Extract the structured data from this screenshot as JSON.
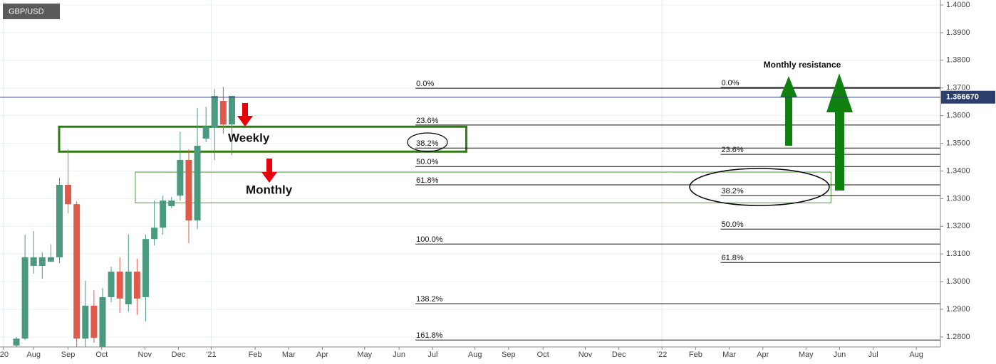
{
  "chart_data": {
    "type": "candlestick",
    "title": "GBP/USD",
    "x": [
      0,
      1,
      2,
      3,
      4,
      5,
      6,
      7,
      8,
      9,
      10,
      11,
      12,
      13,
      14,
      15,
      16,
      17,
      18,
      19,
      20,
      21,
      22,
      23,
      24,
      25
    ],
    "open": [
      1.2769,
      1.2794,
      1.3057,
      1.3057,
      1.3072,
      1.3088,
      1.335,
      1.328,
      1.2794,
      1.2913,
      1.2764,
      1.2944,
      1.3036,
      1.2918,
      1.3036,
      1.2944,
      1.3154,
      1.3195,
      1.3273,
      1.3311,
      1.344,
      1.3221,
      1.3517,
      1.3556,
      1.3653,
      1.3568
    ],
    "high": [
      1.28,
      1.317,
      1.3183,
      1.3106,
      1.3135,
      1.3375,
      1.3478,
      1.329,
      1.3003,
      1.2969,
      1.2977,
      1.3054,
      1.3088,
      1.317,
      1.3083,
      1.317,
      1.3293,
      1.3311,
      1.3306,
      1.3542,
      1.3478,
      1.3627,
      1.3632,
      1.3697,
      1.3704,
      1.3671
    ],
    "low": [
      1.2764,
      1.2789,
      1.3029,
      1.301,
      1.3072,
      1.3067,
      1.3247,
      1.2764,
      1.2764,
      1.2779,
      1.2764,
      1.2926,
      1.2887,
      1.2892,
      1.288,
      1.2856,
      1.3131,
      1.317,
      1.3265,
      1.3293,
      1.3139,
      1.319,
      1.3504,
      1.344,
      1.3535,
      1.3457
    ],
    "close": [
      1.2794,
      1.3088,
      1.3088,
      1.3088,
      1.3088,
      1.335,
      1.328,
      1.2794,
      1.2913,
      1.2797,
      1.2944,
      1.3036,
      1.2939,
      1.3036,
      1.2939,
      1.3154,
      1.3195,
      1.3293,
      1.3293,
      1.344,
      1.3221,
      1.3491,
      1.3561,
      1.3671,
      1.3568,
      1.3671
    ],
    "up_color": "#4a9a80",
    "down_color": "#e05a4b",
    "xlim": [
      -1.9,
      107.2
    ],
    "xticks": [
      {
        "value": -1.5,
        "label": "'20"
      },
      {
        "value": 2.0,
        "label": "Aug"
      },
      {
        "value": 6.0,
        "label": "Sep"
      },
      {
        "value": 9.9,
        "label": "Oct"
      },
      {
        "value": 14.9,
        "label": "Nov"
      },
      {
        "value": 18.8,
        "label": "Dec"
      },
      {
        "value": 22.6,
        "label": "'21"
      },
      {
        "value": 27.7,
        "label": "Feb"
      },
      {
        "value": 31.6,
        "label": "Mar"
      },
      {
        "value": 35.5,
        "label": "Apr"
      },
      {
        "value": 40.4,
        "label": "May"
      },
      {
        "value": 44.4,
        "label": "Jun"
      },
      {
        "value": 48.3,
        "label": "Jul"
      },
      {
        "value": 53.2,
        "label": "Aug"
      },
      {
        "value": 57.1,
        "label": "Sep"
      },
      {
        "value": 61.1,
        "label": "Oct"
      },
      {
        "value": 66.0,
        "label": "Nov"
      },
      {
        "value": 69.9,
        "label": "Dec"
      },
      {
        "value": 74.9,
        "label": "'22"
      },
      {
        "value": 78.8,
        "label": "Feb"
      },
      {
        "value": 82.7,
        "label": "Mar"
      },
      {
        "value": 86.6,
        "label": "Apr"
      },
      {
        "value": 91.6,
        "label": "May"
      },
      {
        "value": 95.5,
        "label": "Jun"
      },
      {
        "value": 99.4,
        "label": "Jul"
      },
      {
        "value": 104.4,
        "label": "Aug"
      }
    ],
    "ylim": [
      1.2764,
      1.4018
    ],
    "yticks": [
      {
        "value": 1.28,
        "label": "1.2800"
      },
      {
        "value": 1.29,
        "label": "1.2900"
      },
      {
        "value": 1.3,
        "label": "1.3000"
      },
      {
        "value": 1.31,
        "label": "1.3100"
      },
      {
        "value": 1.32,
        "label": "1.3200"
      },
      {
        "value": 1.33,
        "label": "1.3300"
      },
      {
        "value": 1.34,
        "label": "1.3400"
      },
      {
        "value": 1.35,
        "label": "1.3500"
      },
      {
        "value": 1.36,
        "label": "1.3600"
      },
      {
        "value": 1.37,
        "label": "1.3700"
      },
      {
        "value": 1.38,
        "label": "1.3800"
      },
      {
        "value": 1.39,
        "label": "1.3900"
      },
      {
        "value": 1.4,
        "label": "1.4000"
      }
    ],
    "grid": true,
    "last_price": {
      "value": 1.36667,
      "label": "1.366670"
    },
    "fib_retracements": [
      {
        "start": 46.3,
        "levels": [
          {
            "label": "0.0%",
            "price": 1.3699
          },
          {
            "label": "23.6%",
            "price": 1.3566
          },
          {
            "label": "38.2%",
            "price": 1.3483
          },
          {
            "label": "50.0%",
            "price": 1.3416
          },
          {
            "label": "61.8%",
            "price": 1.335
          },
          {
            "label": "100.0%",
            "price": 1.3136
          },
          {
            "label": "138.2%",
            "price": 1.292
          },
          {
            "label": "161.8%",
            "price": 1.2789
          }
        ]
      },
      {
        "start": 81.7,
        "levels": [
          {
            "label": "0.0%",
            "price": 1.3702
          },
          {
            "label": "23.6%",
            "price": 1.346
          },
          {
            "label": "38.2%",
            "price": 1.3311
          },
          {
            "label": "50.0%",
            "price": 1.319
          },
          {
            "label": "61.8%",
            "price": 1.3069
          }
        ]
      }
    ],
    "zones": [
      {
        "label": "Weekly",
        "price_range": [
          1.347,
          1.356
        ],
        "x_range": [
          4.96,
          52.2
        ],
        "color": "#2e7d12"
      },
      {
        "label": "Monthly",
        "price_range": [
          1.3285,
          1.3396
        ],
        "x_range": [
          13.8,
          94.5
        ],
        "color": "#4a9a2a"
      }
    ],
    "annotation": "Monthly resistance"
  }
}
